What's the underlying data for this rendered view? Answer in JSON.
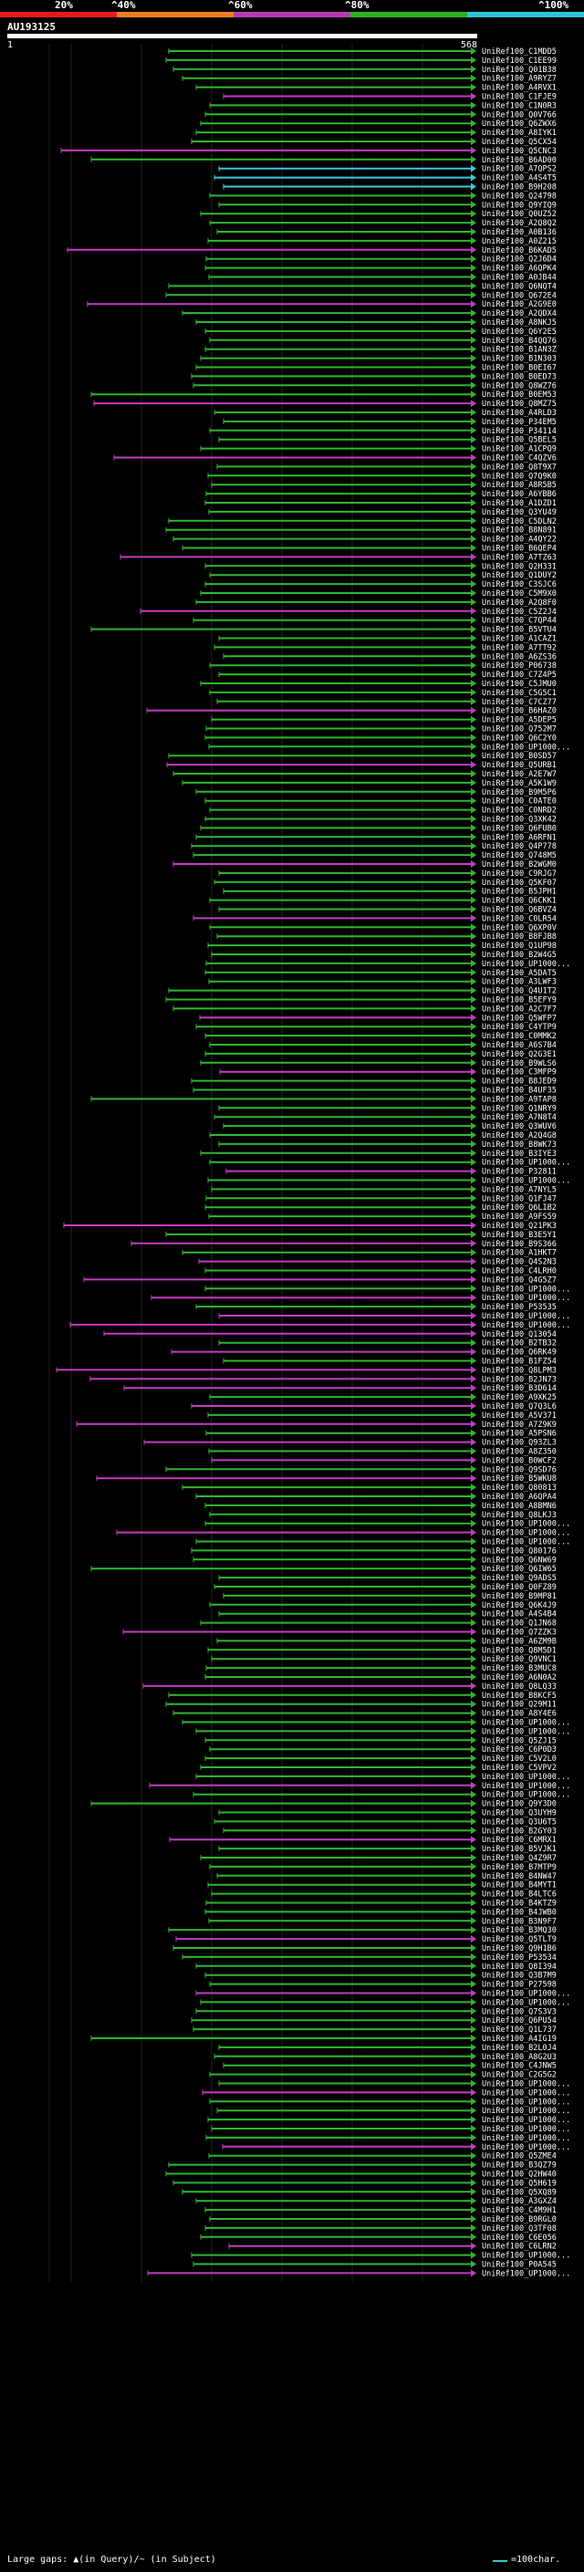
{
  "legend": {
    "ticks": [
      "20%",
      "^40%",
      "^60%",
      "^80%",
      "^100%"
    ],
    "colors": [
      "#e8191b",
      "#f07f1e",
      "#b93ab4",
      "#29b51e",
      "#2fc3d8"
    ]
  },
  "query": {
    "title": "AU193125",
    "start": "1",
    "end": "568"
  },
  "footer": {
    "gaps_note": "Large gaps: ▲(in Query)/~ (in Subject)",
    "scale_label": "=100char.",
    "scale_color": "#3cc"
  },
  "hits": [
    "UniRef100_C1MDD5",
    "UniRef100_C1EE99",
    "UniRef100_Q01B38",
    "UniRef100_A9RYZ7",
    "UniRef100_A4RVX1",
    "UniRef100_C1FJE9",
    "UniRef100_C1N0R3",
    "UniRef100_Q0V766",
    "UniRef100_Q6ZWX6",
    "UniRef100_A8IYK1",
    "UniRef100_Q5CX54",
    "UniRef100_Q5CNC3",
    "UniRef100_B6AD00",
    "UniRef100_A7QPS2",
    "UniRef100_A4S4T5",
    "UniRef100_B9H208",
    "UniRef100_Q24798",
    "UniRef100_Q9YIQ9",
    "UniRef100_Q0UZ52",
    "UniRef100_A2Q8Q2",
    "UniRef100_A0B136",
    "UniRef100_A0Z215",
    "UniRef100_B6KAD5",
    "UniRef100_Q2J6D4",
    "UniRef100_A6QPK4",
    "UniRef100_A0JB44",
    "UniRef100_Q6NQT4",
    "UniRef100_Q672E4",
    "UniRef100_A2G9E0",
    "UniRef100_A2QDX4",
    "UniRef100_A8NKJ5",
    "UniRef100_Q6Y2E5",
    "UniRef100_B4QQ76",
    "UniRef100_B1AN3Z",
    "UniRef100_B1N303",
    "UniRef100_B0EI67",
    "UniRef100_B0ED73",
    "UniRef100_Q8WZ76",
    "UniRef100_B0EM53",
    "UniRef100_Q8MZ75",
    "UniRef100_A4RLD3",
    "UniRef100_P34EM5",
    "UniRef100_P34114",
    "UniRef100_Q5BEL5",
    "UniRef100_A1CPQ9",
    "UniRef100_C4QZV6",
    "UniRef100_Q8T9X7",
    "UniRef100_Q7Q9K0",
    "UniRef100_A8R5B5",
    "UniRef100_A6YBB6",
    "UniRef100_A1DZD1",
    "UniRef100_Q3YU49",
    "UniRef100_C5DLN2",
    "UniRef100_B8N891",
    "UniRef100_A4QY22",
    "UniRef100_B6QEP4",
    "UniRef100_A7TZ63",
    "UniRef100_Q2H331",
    "UniRef100_Q1DUY2",
    "UniRef100_C3SJC6",
    "UniRef100_C5M9X0",
    "UniRef100_A2Q8F0",
    "UniRef100_C5Z2J4",
    "UniRef100_C7QP44",
    "UniRef100_B5VTU4",
    "UniRef100_A1CAZ1",
    "UniRef100_A7TT92",
    "UniRef100_A6ZS36",
    "UniRef100_P06738",
    "UniRef100_C7Z4P5",
    "UniRef100_C5JMU0",
    "UniRef100_C5G5C1",
    "UniRef100_C7CZ77",
    "UniRef100_B6HAZ0",
    "UniRef100_A5DEP5",
    "UniRef100_Q752M7",
    "UniRef100_Q6C2Y0",
    "UniRef100_UP1000...",
    "UniRef100_B0SD57",
    "UniRef100_Q5URB1",
    "UniRef100_A2E7W7",
    "UniRef100_A5K1W9",
    "UniRef100_B9M5P6",
    "UniRef100_C0ATE0",
    "UniRef100_C0NRD2",
    "UniRef100_Q3XK42",
    "UniRef100_Q6FUB0",
    "UniRef100_A6RFN1",
    "UniRef100_Q4P778",
    "UniRef100_Q748M5",
    "UniRef100_B2WGM0",
    "UniRef100_C9RJG7",
    "UniRef100_Q5KF07",
    "UniRef100_B5JPH1",
    "UniRef100_Q6CKK1",
    "UniRef100_Q6BVZ4",
    "UniRef100_C0LR54",
    "UniRef100_Q6XP0V",
    "UniRef100_B8FJB8",
    "UniRef100_Q1UP98",
    "UniRef100_B2W4G5",
    "UniRef100_UP1000...",
    "UniRef100_A5DAT5",
    "UniRef100_A3LWF3",
    "UniRef100_Q4U1T2",
    "UniRef100_B5EFY9",
    "UniRef100_A2C7F7",
    "UniRef100_Q5WFP7",
    "UniRef100_C4YTP9",
    "UniRef100_C0MMK2",
    "UniRef100_A6S7B4",
    "UniRef100_Q2G3E1",
    "UniRef100_B9WLS6",
    "UniRef100_C3MFP9",
    "UniRef100_B8JED9",
    "UniRef100_B4UF35",
    "UniRef100_A9TAP8",
    "UniRef100_Q1NRY9",
    "UniRef100_A7N8T4",
    "UniRef100_Q3WUV6",
    "UniRef100_A2Q4G8",
    "UniRef100_B8WK73",
    "UniRef100_B3IYE3",
    "UniRef100_UP1000...",
    "UniRef100_P32811",
    "UniRef100_UP1000...",
    "UniRef100_A7NYL5",
    "UniRef100_Q1FJ47",
    "UniRef100_Q6LIB2",
    "UniRef100_A9FS59",
    "UniRef100_Q21PK3",
    "UniRef100_B3E5Y1",
    "UniRef100_B9S366",
    "UniRef100_A1HKT7",
    "UniRef100_Q4S2N3",
    "UniRef100_C4LRH0",
    "UniRef100_Q4G5Z7",
    "UniRef100_UP1000...",
    "UniRef100_UP1000...",
    "UniRef100_P53535",
    "UniRef100_UP1000...",
    "UniRef100_UP1000...",
    "UniRef100_Q13054",
    "UniRef100_B2TB32",
    "UniRef100_Q6RK49",
    "UniRef100_B1FZ54",
    "UniRef100_Q8LPM3",
    "UniRef100_B2JN73",
    "UniRef100_B3D614",
    "UniRef100_A9XK25",
    "UniRef100_Q7Q3L6",
    "UniRef100_A5V371",
    "UniRef100_A7Z9K9",
    "UniRef100_A5PSN6",
    "UniRef100_Q93ZL3",
    "UniRef100_A8Z350",
    "UniRef100_B0WCF2",
    "UniRef100_Q9SD76",
    "UniRef100_B5WKU8",
    "UniRef100_Q80813",
    "UniRef100_A6QPA4",
    "UniRef100_A8BMN6",
    "UniRef100_Q8LKJ3",
    "UniRef100_UP1000...",
    "UniRef100_UP1000...",
    "UniRef100_UP1000...",
    "UniRef100_Q80176",
    "UniRef100_Q6NW69",
    "UniRef100_Q6IW65",
    "UniRef100_Q9ADS5",
    "UniRef100_Q0FZ89",
    "UniRef100_B9MP81",
    "UniRef100_Q6K4J9",
    "UniRef100_A4S4B4",
    "UniRef100_Q1JN68",
    "UniRef100_Q7ZZK3",
    "UniRef100_A6ZM9B",
    "UniRef100_Q8M5D1",
    "UniRef100_Q9VNC1",
    "UniRef100_B3MUC8",
    "UniRef100_A6N0A2",
    "UniRef100_Q8LQ33",
    "UniRef100_B8KCF5",
    "UniRef100_Q29M11",
    "UniRef100_A8Y4E6",
    "UniRef100_UP1000...",
    "UniRef100_UP1000...",
    "UniRef100_Q5ZJ15",
    "UniRef100_C6P0D3",
    "UniRef100_C5V2L0",
    "UniRef100_C5VPV2",
    "UniRef100_UP1000...",
    "UniRef100_UP1000...",
    "UniRef100_UP1000...",
    "UniRef100_Q9Y3D0",
    "UniRef100_Q3UYH9",
    "UniRef100_Q3U6T5",
    "UniRef100_B2GY03",
    "UniRef100_C6MRX1",
    "UniRef100_B5VJK1",
    "UniRef100_Q4Z9R7",
    "UniRef100_B7MTP9",
    "UniRef100_B4NW47",
    "UniRef100_B4MYT1",
    "UniRef100_B4LTC6",
    "UniRef100_B4KTZ9",
    "UniRef100_B4JWB0",
    "UniRef100_B3N9F7",
    "UniRef100_B3MQ30",
    "UniRef100_Q5TLT9",
    "UniRef100_Q9H1B6",
    "UniRef100_P53534",
    "UniRef100_Q8I394",
    "UniRef100_Q3B7M9",
    "UniRef100_P27598",
    "UniRef100_UP1000...",
    "UniRef100_UP1000...",
    "UniRef100_Q7S3V3",
    "UniRef100_Q6PU54",
    "UniRef100_Q1L737",
    "UniRef100_A4IG19",
    "UniRef100_B2L0J4",
    "UniRef100_A8G2U3",
    "UniRef100_C4JNW5",
    "UniRef100_C2G5G2",
    "UniRef100_UP1000...",
    "UniRef100_UP1000...",
    "UniRef100_UP1000...",
    "UniRef100_UP1000...",
    "UniRef100_UP1000...",
    "UniRef100_UP1000...",
    "UniRef100_UP1000...",
    "UniRef100_UP1000...",
    "UniRef100_Q5ZME4",
    "UniRef100_B3QZ79",
    "UniRef100_Q2HW40",
    "UniRef100_Q5H619",
    "UniRef100_Q5XQ89",
    "UniRef100_A3GXZ4",
    "UniRef100_C4M9H1",
    "UniRef100_B9RGL0",
    "UniRef100_Q3TF08",
    "UniRef100_C6E056",
    "UniRef100_C6LRN2",
    "UniRef100_UP1000...",
    "UniRef100_P0A545",
    "UniRef100_UP1000..."
  ]
}
